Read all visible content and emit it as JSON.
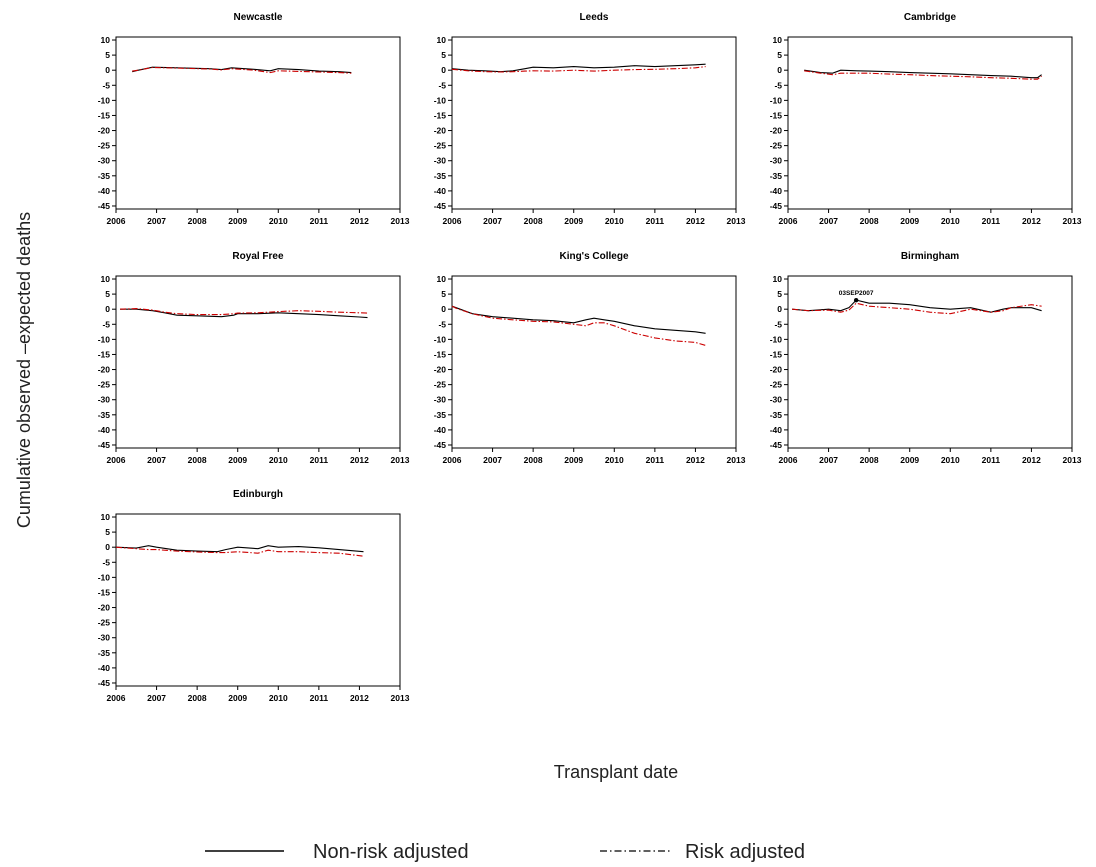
{
  "chart_data": {
    "type": "line",
    "ylabel": "Cumulative observed –expected deaths",
    "xlabel": "Transplant date",
    "x_ticks": [
      "2006",
      "2007",
      "2008",
      "2009",
      "2010",
      "2011",
      "2012",
      "2013"
    ],
    "y_ticks": [
      "10",
      "5",
      "0",
      "-5",
      "-10",
      "-15",
      "-20",
      "-25",
      "-30",
      "-35",
      "-40",
      "-45"
    ],
    "xlim": [
      2006,
      2013
    ],
    "ylim": [
      -46,
      11
    ],
    "legend": {
      "placement": "bottom",
      "entries": [
        {
          "label": "Non-risk adjusted",
          "color": "#000000",
          "style": "solid"
        },
        {
          "label": "Risk adjusted",
          "color": "#cc0000",
          "style": "dash-dot"
        }
      ]
    },
    "panels": [
      {
        "title": "Newcastle",
        "series": [
          {
            "key": "non_risk",
            "x": [
              2006.4,
              2006.55,
              2006.9,
              2007.5,
              2008.3,
              2008.6,
              2008.85,
              2009.4,
              2009.8,
              2010.0,
              2010.5,
              2011.0,
              2011.5,
              2011.8
            ],
            "y": [
              -0.5,
              0,
              1,
              0.8,
              0.5,
              0.2,
              0.8,
              0.3,
              -0.2,
              0.5,
              0.2,
              -0.3,
              -0.5,
              -0.8
            ]
          },
          {
            "key": "risk",
            "x": [
              2006.4,
              2006.55,
              2006.9,
              2007.5,
              2008.3,
              2008.6,
              2008.85,
              2009.4,
              2009.8,
              2010.0,
              2010.5,
              2011.0,
              2011.5,
              2011.8
            ],
            "y": [
              -0.3,
              0,
              0.9,
              0.7,
              0.4,
              0.1,
              0.5,
              0,
              -0.8,
              -0.2,
              -0.4,
              -0.6,
              -0.8,
              -1.0
            ]
          }
        ]
      },
      {
        "title": "Leeds",
        "series": [
          {
            "key": "non_risk",
            "x": [
              2006.0,
              2006.4,
              2006.8,
              2007.2,
              2007.5,
              2007.8,
              2008.0,
              2008.5,
              2009.0,
              2009.5,
              2010.0,
              2010.5,
              2011.0,
              2011.5,
              2012.0,
              2012.25
            ],
            "y": [
              0.5,
              0,
              -0.2,
              -0.5,
              -0.2,
              0.5,
              1.0,
              0.8,
              1.2,
              0.8,
              1.0,
              1.5,
              1.2,
              1.5,
              1.8,
              2.0
            ]
          },
          {
            "key": "risk",
            "x": [
              2006.0,
              2006.4,
              2006.8,
              2007.2,
              2007.5,
              2007.8,
              2008.0,
              2008.5,
              2009.0,
              2009.5,
              2010.0,
              2010.5,
              2011.0,
              2011.5,
              2012.0,
              2012.25
            ],
            "y": [
              0.3,
              -0.2,
              -0.5,
              -0.6,
              -0.5,
              -0.3,
              -0.2,
              -0.3,
              0,
              -0.3,
              0,
              0.2,
              0.3,
              0.5,
              0.8,
              1.2
            ]
          }
        ]
      },
      {
        "title": "Cambridge",
        "series": [
          {
            "key": "non_risk",
            "x": [
              2006.4,
              2006.8,
              2007.1,
              2007.3,
              2007.7,
              2008.0,
              2008.5,
              2009.0,
              2009.5,
              2010.0,
              2010.5,
              2011.0,
              2011.5,
              2012.0,
              2012.15,
              2012.25
            ],
            "y": [
              0,
              -0.8,
              -1.0,
              0,
              -0.2,
              -0.3,
              -0.5,
              -0.8,
              -1.0,
              -1.2,
              -1.5,
              -1.8,
              -2.0,
              -2.5,
              -2.5,
              -1.5
            ]
          },
          {
            "key": "risk",
            "x": [
              2006.4,
              2006.8,
              2007.1,
              2007.3,
              2007.7,
              2008.0,
              2008.5,
              2009.0,
              2009.5,
              2010.0,
              2010.5,
              2011.0,
              2011.5,
              2012.0,
              2012.15,
              2012.25
            ],
            "y": [
              -0.2,
              -1.0,
              -1.5,
              -1.0,
              -1.0,
              -1.0,
              -1.3,
              -1.5,
              -1.8,
              -2.0,
              -2.2,
              -2.5,
              -2.7,
              -3.0,
              -3.0,
              -2.0
            ]
          }
        ]
      },
      {
        "title": "Royal Free",
        "series": [
          {
            "key": "non_risk",
            "x": [
              2006.1,
              2006.5,
              2006.9,
              2007.2,
              2007.5,
              2008.0,
              2008.6,
              2008.9,
              2009.0,
              2009.5,
              2010.0,
              2010.5,
              2011.0,
              2011.5,
              2012.0,
              2012.2
            ],
            "y": [
              0,
              0,
              -0.5,
              -1.2,
              -2.0,
              -2.2,
              -2.5,
              -2.0,
              -1.5,
              -1.5,
              -1.2,
              -1.5,
              -1.8,
              -2.2,
              -2.6,
              -2.8
            ]
          },
          {
            "key": "risk",
            "x": [
              2006.1,
              2006.5,
              2006.9,
              2007.2,
              2007.5,
              2008.0,
              2008.6,
              2008.9,
              2009.0,
              2009.5,
              2010.0,
              2010.5,
              2011.0,
              2011.5,
              2012.0,
              2012.2
            ],
            "y": [
              0,
              0.2,
              -0.3,
              -1.0,
              -1.5,
              -1.8,
              -1.8,
              -1.5,
              -1.3,
              -1.2,
              -0.8,
              -0.5,
              -0.7,
              -1.0,
              -1.2,
              -1.3
            ]
          }
        ]
      },
      {
        "title": "King's College",
        "series": [
          {
            "key": "non_risk",
            "x": [
              2006.0,
              2006.1,
              2006.5,
              2007.0,
              2007.5,
              2008.0,
              2008.5,
              2009.0,
              2009.3,
              2009.5,
              2009.75,
              2010.0,
              2010.5,
              2011.0,
              2011.5,
              2012.0,
              2012.25
            ],
            "y": [
              1,
              0.5,
              -1.5,
              -2.5,
              -3.0,
              -3.5,
              -3.8,
              -4.5,
              -3.5,
              -3.0,
              -3.5,
              -4.0,
              -5.5,
              -6.5,
              -7.0,
              -7.5,
              -8.0
            ]
          },
          {
            "key": "risk",
            "x": [
              2006.0,
              2006.1,
              2006.5,
              2007.0,
              2007.5,
              2008.0,
              2008.5,
              2009.0,
              2009.3,
              2009.5,
              2009.75,
              2010.0,
              2010.5,
              2011.0,
              2011.5,
              2012.0,
              2012.25
            ],
            "y": [
              1,
              0.3,
              -1.5,
              -3.0,
              -3.5,
              -4.0,
              -4.2,
              -5.0,
              -5.5,
              -4.5,
              -4.5,
              -5.5,
              -8.0,
              -9.5,
              -10.5,
              -11.0,
              -12.0
            ]
          }
        ]
      },
      {
        "title": "Birmingham",
        "series": [
          {
            "key": "non_risk",
            "x": [
              2006.1,
              2006.5,
              2007.0,
              2007.3,
              2007.5,
              2007.68,
              2008.0,
              2008.5,
              2009.0,
              2009.5,
              2010.0,
              2010.5,
              2011.0,
              2011.3,
              2011.5,
              2012.0,
              2012.25
            ],
            "y": [
              0,
              -0.5,
              0,
              -0.5,
              0.5,
              3,
              2.0,
              2.0,
              1.5,
              0.5,
              0,
              0.5,
              -1.0,
              0,
              0.5,
              0.5,
              -0.5
            ]
          },
          {
            "key": "risk",
            "x": [
              2006.1,
              2006.5,
              2007.0,
              2007.3,
              2007.5,
              2007.68,
              2008.0,
              2008.5,
              2009.0,
              2009.5,
              2010.0,
              2010.5,
              2011.0,
              2011.3,
              2011.5,
              2012.0,
              2012.25
            ],
            "y": [
              0,
              -0.5,
              -0.3,
              -1.0,
              -0.3,
              2.0,
              1.0,
              0.5,
              0,
              -1.0,
              -1.5,
              0,
              -1.0,
              -0.5,
              0.5,
              1.5,
              1.0
            ]
          }
        ]
      },
      {
        "title": "Edinburgh",
        "series": [
          {
            "key": "non_risk",
            "x": [
              2006.0,
              2006.5,
              2006.8,
              2007.0,
              2007.5,
              2008.0,
              2008.5,
              2008.7,
              2009.0,
              2009.5,
              2009.75,
              2010.0,
              2010.5,
              2011.0,
              2011.5,
              2012.1
            ],
            "y": [
              0,
              -0.3,
              0.5,
              0,
              -1.0,
              -1.3,
              -1.5,
              -0.8,
              0,
              -0.5,
              0.5,
              0,
              0.2,
              -0.2,
              -0.8,
              -1.5
            ]
          },
          {
            "key": "risk",
            "x": [
              2006.0,
              2006.5,
              2006.8,
              2007.0,
              2007.5,
              2008.0,
              2008.5,
              2008.7,
              2009.0,
              2009.5,
              2009.75,
              2010.0,
              2010.5,
              2011.0,
              2011.5,
              2012.1
            ],
            "y": [
              0,
              -0.5,
              -0.8,
              -0.8,
              -1.3,
              -1.6,
              -1.8,
              -1.8,
              -1.5,
              -2.0,
              -1.0,
              -1.5,
              -1.5,
              -1.8,
              -2.0,
              -3.0
            ]
          }
        ]
      }
    ],
    "annotations": [
      {
        "panel": "Birmingham",
        "text": "03SEP2007",
        "x": 2007.68,
        "y": 3
      }
    ]
  },
  "colors": {
    "non_risk": "#000000",
    "risk": "#cc0000",
    "axis": "#000000"
  }
}
